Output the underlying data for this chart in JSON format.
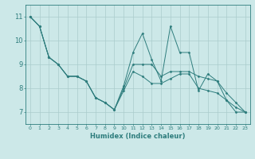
{
  "title": "",
  "xlabel": "Humidex (Indice chaleur)",
  "ylabel": "",
  "bg_color": "#cce8e8",
  "line_color": "#2e7d7d",
  "grid_color": "#aacccc",
  "xlim": [
    -0.5,
    23.5
  ],
  "ylim": [
    6.5,
    11.5
  ],
  "xticks": [
    0,
    1,
    2,
    3,
    4,
    5,
    6,
    7,
    8,
    9,
    10,
    11,
    12,
    13,
    14,
    15,
    16,
    17,
    18,
    19,
    20,
    21,
    22,
    23
  ],
  "yticks": [
    7,
    8,
    9,
    10,
    11
  ],
  "series": [
    {
      "x": [
        0,
        1,
        2,
        3,
        4,
        5,
        6,
        7,
        8,
        9,
        10,
        11,
        12,
        13,
        14,
        15,
        16,
        17,
        18,
        19,
        20,
        21,
        22,
        23
      ],
      "y": [
        11.0,
        10.6,
        9.3,
        9.0,
        8.5,
        8.5,
        8.3,
        7.6,
        7.4,
        7.1,
        8.1,
        9.5,
        10.3,
        9.2,
        8.3,
        10.6,
        9.5,
        9.5,
        7.9,
        8.6,
        8.3,
        7.5,
        7.0,
        7.0
      ]
    },
    {
      "x": [
        0,
        1,
        2,
        3,
        4,
        5,
        6,
        7,
        8,
        9,
        10,
        11,
        12,
        13,
        14,
        15,
        16,
        17,
        18,
        19,
        20,
        21,
        22,
        23
      ],
      "y": [
        11.0,
        10.6,
        9.3,
        9.0,
        8.5,
        8.5,
        8.3,
        7.6,
        7.4,
        7.1,
        8.0,
        9.0,
        9.0,
        9.0,
        8.5,
        8.7,
        8.7,
        8.7,
        8.5,
        8.4,
        8.3,
        7.8,
        7.4,
        7.0
      ]
    },
    {
      "x": [
        0,
        1,
        2,
        3,
        4,
        5,
        6,
        7,
        8,
        9,
        10,
        11,
        12,
        13,
        14,
        15,
        16,
        17,
        18,
        19,
        20,
        21,
        22,
        23
      ],
      "y": [
        11.0,
        10.6,
        9.3,
        9.0,
        8.5,
        8.5,
        8.3,
        7.6,
        7.4,
        7.1,
        7.9,
        8.7,
        8.5,
        8.2,
        8.2,
        8.4,
        8.6,
        8.6,
        8.0,
        7.9,
        7.8,
        7.5,
        7.2,
        7.0
      ]
    }
  ]
}
